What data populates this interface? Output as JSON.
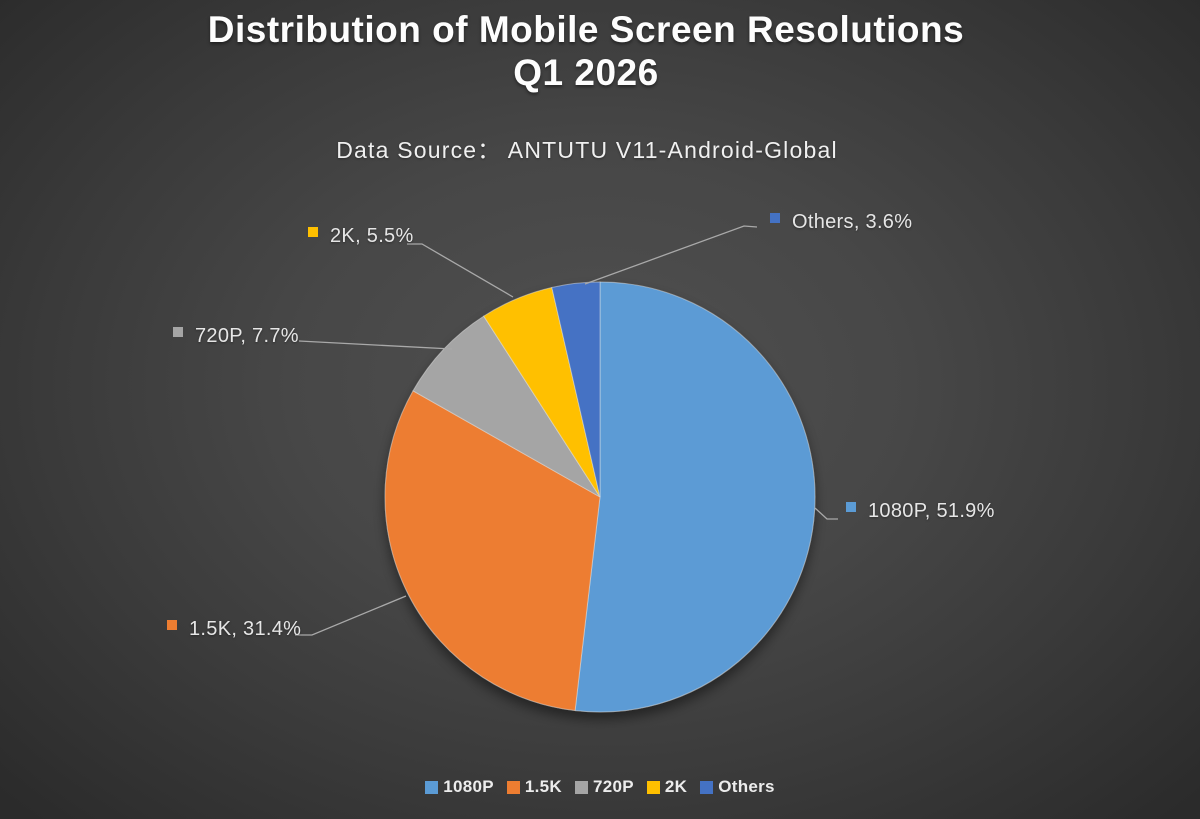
{
  "header": {
    "title_line1": "Distribution of Mobile Screen Resolutions",
    "title_line2": "Q1 2026",
    "source": "Data Source：  ANTUTU V11-Android-Global"
  },
  "chart_data": {
    "type": "pie",
    "title": "Distribution of Mobile Screen Resolutions Q1 2026",
    "subtitle": "Data Source：  ANTUTU V11-Android-Global",
    "categories": [
      "1080P",
      "1.5K",
      "720P",
      "2K",
      "Others"
    ],
    "values": [
      51.9,
      31.4,
      7.7,
      5.5,
      3.6
    ],
    "unit": "%",
    "colors": [
      "#5B9BD5",
      "#ED7D31",
      "#A5A5A5",
      "#FFC000",
      "#4472C4"
    ],
    "start_angle": "top",
    "direction": "clockwise",
    "labels": [
      "1080P, 51.9%",
      "1.5K, 31.4%",
      "720P, 7.7%",
      "2K, 5.5%",
      "Others, 3.6%"
    ],
    "legend": {
      "position": "bottom",
      "entries": [
        "1080P",
        "1.5K",
        "720P",
        "2K",
        "Others"
      ]
    },
    "background": {
      "center": "#505050",
      "edge": "#2b2b2b"
    },
    "leader_line_color": "#a9a9a9",
    "label_text_color": "#e6e6e6"
  }
}
